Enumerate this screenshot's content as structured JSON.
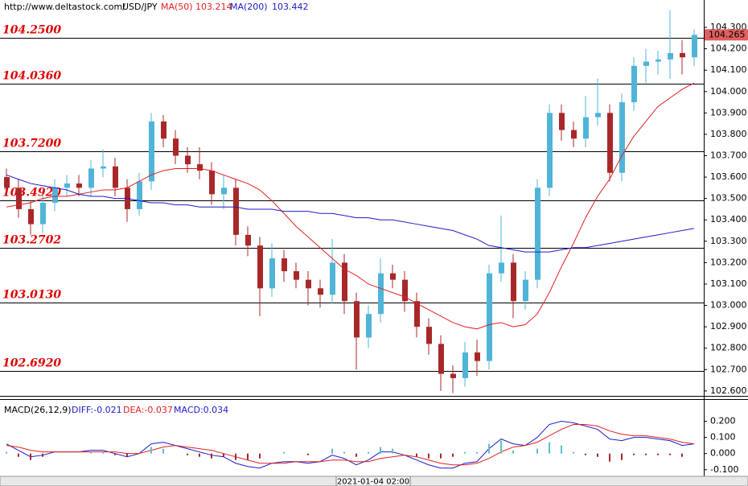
{
  "chart_data": [
    {
      "type": "candlestick",
      "source": "http://www.deltastock.com/",
      "symbol": "USD/JPY",
      "up_color": "#4fb4d8",
      "down_color": "#a8282a",
      "open": [
        103.6,
        103.55,
        103.45,
        103.38,
        103.48,
        103.55,
        103.57,
        103.55,
        103.64,
        103.65,
        103.55,
        103.45,
        103.58,
        103.86,
        103.78,
        103.7,
        103.66,
        103.63,
        103.52,
        103.55,
        103.33,
        103.28,
        103.08,
        103.22,
        103.16,
        103.12,
        103.08,
        103.05,
        103.2,
        103.02,
        102.85,
        102.96,
        103.15,
        103.12,
        103.02,
        102.9,
        102.82,
        102.68,
        102.66,
        102.78,
        102.74,
        103.15,
        103.2,
        103.02,
        103.12,
        103.55,
        103.9,
        103.82,
        103.78,
        103.88,
        103.9,
        103.62,
        103.95,
        104.12,
        104.14,
        104.15,
        104.18,
        104.16
      ],
      "high": [
        103.64,
        103.59,
        103.49,
        103.52,
        103.59,
        103.61,
        103.61,
        103.68,
        103.73,
        103.69,
        103.59,
        103.62,
        103.9,
        103.89,
        103.82,
        103.74,
        103.74,
        103.67,
        103.61,
        103.59,
        103.37,
        103.32,
        103.29,
        103.26,
        103.2,
        103.16,
        103.12,
        103.31,
        103.24,
        103.06,
        103.0,
        103.22,
        103.19,
        103.16,
        103.06,
        102.94,
        102.86,
        102.72,
        102.83,
        102.84,
        103.19,
        103.42,
        103.24,
        103.16,
        103.59,
        103.94,
        103.94,
        103.86,
        103.98,
        104.06,
        103.94,
        103.99,
        104.16,
        104.2,
        104.19,
        104.38,
        104.24,
        104.29
      ],
      "low": [
        103.51,
        103.41,
        103.33,
        103.34,
        103.44,
        103.51,
        103.51,
        103.51,
        103.6,
        103.51,
        103.39,
        103.42,
        103.54,
        103.74,
        103.66,
        103.62,
        103.59,
        103.47,
        103.45,
        103.28,
        103.23,
        102.95,
        103.04,
        103.11,
        103.08,
        103.0,
        102.99,
        103.01,
        102.96,
        102.7,
        102.8,
        102.92,
        103.08,
        102.97,
        102.85,
        102.77,
        102.6,
        102.59,
        102.62,
        102.67,
        102.7,
        103.11,
        102.94,
        102.98,
        103.08,
        103.51,
        103.77,
        103.74,
        103.74,
        103.84,
        103.58,
        103.58,
        103.91,
        104.04,
        104.08,
        104.06,
        104.08,
        104.12
      ],
      "close": [
        103.55,
        103.45,
        103.38,
        103.48,
        103.55,
        103.57,
        103.55,
        103.64,
        103.65,
        103.55,
        103.45,
        103.58,
        103.86,
        103.78,
        103.7,
        103.66,
        103.63,
        103.52,
        103.55,
        103.33,
        103.28,
        103.08,
        103.22,
        103.16,
        103.12,
        103.08,
        103.05,
        103.2,
        103.02,
        102.85,
        102.96,
        103.15,
        103.12,
        103.02,
        102.9,
        102.82,
        102.68,
        102.66,
        102.78,
        102.74,
        103.15,
        103.2,
        103.02,
        103.12,
        103.55,
        103.9,
        103.82,
        103.78,
        103.88,
        103.9,
        103.62,
        103.95,
        104.12,
        104.14,
        104.15,
        104.18,
        104.16,
        104.265
      ],
      "series": [
        {
          "name": "MA(50)",
          "legend_value": "103.214",
          "color": "#e02020",
          "values": [
            103.46,
            103.47,
            103.48,
            103.5,
            103.51,
            103.51,
            103.52,
            103.53,
            103.54,
            103.54,
            103.55,
            103.58,
            103.61,
            103.63,
            103.64,
            103.64,
            103.64,
            103.63,
            103.61,
            103.59,
            103.57,
            103.54,
            103.49,
            103.43,
            103.37,
            103.32,
            103.27,
            103.22,
            103.17,
            103.14,
            103.1,
            103.08,
            103.06,
            103.04,
            103.01,
            102.98,
            102.95,
            102.92,
            102.9,
            102.89,
            102.91,
            102.92,
            102.9,
            102.91,
            102.96,
            103.06,
            103.18,
            103.29,
            103.41,
            103.51,
            103.59,
            103.7,
            103.79,
            103.86,
            103.93,
            103.97,
            104.01,
            104.04
          ]
        },
        {
          "name": "MA(200)",
          "legend_value": "103.442",
          "color": "#1c1cc8",
          "values": [
            103.61,
            103.59,
            103.57,
            103.56,
            103.55,
            103.54,
            103.52,
            103.51,
            103.51,
            103.5,
            103.5,
            103.49,
            103.48,
            103.48,
            103.47,
            103.47,
            103.46,
            103.46,
            103.46,
            103.46,
            103.45,
            103.45,
            103.45,
            103.44,
            103.44,
            103.44,
            103.43,
            103.43,
            103.42,
            103.41,
            103.41,
            103.4,
            103.4,
            103.39,
            103.38,
            103.37,
            103.36,
            103.35,
            103.33,
            103.31,
            103.28,
            103.27,
            103.26,
            103.25,
            103.25,
            103.25,
            103.26,
            103.27,
            103.27,
            103.28,
            103.29,
            103.3,
            103.31,
            103.32,
            103.33,
            103.34,
            103.35,
            103.36
          ]
        }
      ],
      "levels": [
        {
          "value": 104.25,
          "label": "104.2500"
        },
        {
          "value": 104.036,
          "label": "104.0360"
        },
        {
          "value": 103.72,
          "label": "103.7200"
        },
        {
          "value": 103.492,
          "label": "103.4920"
        },
        {
          "value": 103.2702,
          "label": "103.2702"
        },
        {
          "value": 103.013,
          "label": "103.0130"
        },
        {
          "value": 102.692,
          "label": "102.6920"
        }
      ],
      "last_price": {
        "value": 104.265,
        "label": "104.265"
      },
      "ylim": [
        102.577,
        104.428
      ],
      "yticks": [
        {
          "value": 102.6,
          "label": "102.600"
        },
        {
          "value": 102.7,
          "label": "102.700"
        },
        {
          "value": 102.8,
          "label": "102.800"
        },
        {
          "value": 102.9,
          "label": "102.900"
        },
        {
          "value": 103.0,
          "label": "103.000"
        },
        {
          "value": 103.1,
          "label": "103.100"
        },
        {
          "value": 103.2,
          "label": "103.200"
        },
        {
          "value": 103.3,
          "label": "103.300"
        },
        {
          "value": 103.4,
          "label": "103.400"
        },
        {
          "value": 103.5,
          "label": "103.500"
        },
        {
          "value": 103.6,
          "label": "103.600"
        },
        {
          "value": 103.7,
          "label": "103.700"
        },
        {
          "value": 103.8,
          "label": "103.800"
        },
        {
          "value": 103.9,
          "label": "103.900"
        },
        {
          "value": 104.0,
          "label": "104.000"
        },
        {
          "value": 104.1,
          "label": "104.100"
        },
        {
          "value": 104.2,
          "label": "104.200"
        },
        {
          "value": 104.3,
          "label": "104.300"
        }
      ]
    },
    {
      "type": "macd",
      "title": "MACD(26,12,9)",
      "x_label": "2021-01-04 02:00",
      "series": [
        {
          "legend": "DIFF:-0.021",
          "color": "#1c1cc8",
          "values": [
            0.06,
            0.02,
            -0.02,
            -0.01,
            0.01,
            0.01,
            0.01,
            0.02,
            0.02,
            0.0,
            -0.02,
            0.0,
            0.06,
            0.07,
            0.05,
            0.03,
            0.01,
            -0.01,
            -0.02,
            -0.06,
            -0.08,
            -0.09,
            -0.06,
            -0.05,
            -0.05,
            -0.06,
            -0.05,
            -0.01,
            -0.03,
            -0.07,
            -0.04,
            0.01,
            0.01,
            -0.01,
            -0.04,
            -0.07,
            -0.09,
            -0.09,
            -0.06,
            -0.05,
            0.03,
            0.09,
            0.06,
            0.05,
            0.1,
            0.18,
            0.2,
            0.19,
            0.17,
            0.15,
            0.09,
            0.08,
            0.1,
            0.1,
            0.09,
            0.08,
            0.05,
            0.06
          ]
        },
        {
          "legend": "DEA:-0.037",
          "color": "#e02020",
          "values": [
            0.05,
            0.04,
            0.02,
            0.01,
            0.01,
            0.01,
            0.01,
            0.01,
            0.01,
            0.01,
            0.0,
            0.0,
            0.02,
            0.04,
            0.05,
            0.04,
            0.03,
            0.02,
            0.0,
            -0.02,
            -0.04,
            -0.06,
            -0.06,
            -0.06,
            -0.05,
            -0.05,
            -0.05,
            -0.04,
            -0.04,
            -0.05,
            -0.05,
            -0.03,
            -0.02,
            -0.01,
            -0.02,
            -0.04,
            -0.06,
            -0.07,
            -0.07,
            -0.06,
            -0.03,
            0.01,
            0.04,
            0.05,
            0.07,
            0.11,
            0.15,
            0.18,
            0.18,
            0.17,
            0.14,
            0.12,
            0.11,
            0.11,
            0.1,
            0.09,
            0.07,
            0.06
          ]
        },
        {
          "legend": "MACD:0.034",
          "type": "bar",
          "color": "#1c1cc8",
          "up_color": "#5cc0c8",
          "down_color": "#a8282a",
          "values": [
            0.01,
            -0.02,
            -0.04,
            -0.02,
            0.0,
            0.0,
            0.0,
            0.01,
            0.01,
            -0.01,
            -0.02,
            0.0,
            0.04,
            0.03,
            0.0,
            -0.01,
            -0.02,
            -0.03,
            -0.02,
            -0.04,
            -0.04,
            -0.03,
            0.0,
            0.01,
            0.0,
            -0.01,
            0.0,
            0.03,
            0.01,
            -0.02,
            0.01,
            0.04,
            0.03,
            0.0,
            -0.02,
            -0.03,
            -0.03,
            -0.02,
            0.01,
            0.01,
            0.06,
            0.08,
            0.02,
            0.0,
            0.03,
            0.07,
            0.05,
            0.01,
            -0.01,
            -0.02,
            -0.05,
            -0.04,
            -0.01,
            -0.01,
            -0.01,
            -0.01,
            -0.02,
            0.0
          ]
        }
      ],
      "ylim": [
        -0.141,
        0.332
      ],
      "yticks": [
        {
          "value": 0.2,
          "label": "0.200"
        },
        {
          "value": 0.1,
          "label": "0.100"
        },
        {
          "value": 0.0,
          "label": "0.000"
        },
        {
          "value": -0.1,
          "label": "-0.100"
        }
      ]
    }
  ]
}
